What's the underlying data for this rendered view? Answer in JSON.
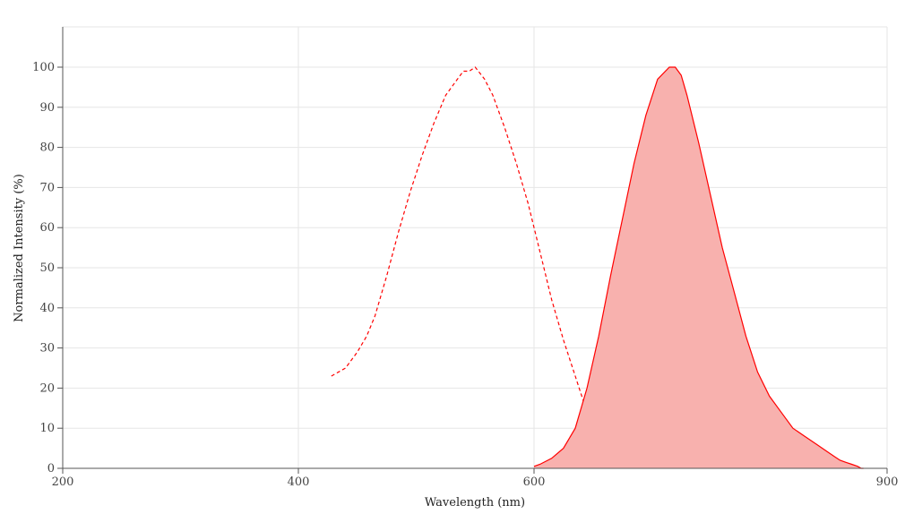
{
  "chart_data": {
    "type": "area",
    "xlabel": "Wavelength (nm)",
    "ylabel": "Normalized Intensity (%)",
    "xlim": [
      200,
      900
    ],
    "ylim": [
      0,
      110
    ],
    "x_ticks": [
      200,
      400,
      600,
      900
    ],
    "y_ticks": [
      0,
      10,
      20,
      30,
      40,
      50,
      60,
      70,
      80,
      90,
      100
    ],
    "grid": true,
    "series": [
      {
        "style": "dashed-line",
        "color": "#ff0000",
        "x": [
          428,
          440,
          450,
          458,
          465,
          475,
          485,
          495,
          505,
          515,
          525,
          535,
          540,
          545,
          550,
          558,
          565,
          575,
          585,
          595,
          605,
          615,
          625,
          635,
          645,
          655,
          665,
          675,
          685,
          695,
          700
        ],
        "y": [
          23,
          25,
          29,
          33,
          38,
          48,
          59,
          69,
          78,
          86,
          93,
          97,
          99,
          99,
          100,
          97,
          93,
          85,
          76,
          66,
          54,
          42,
          32,
          23,
          14,
          8,
          4,
          2,
          1,
          0.5,
          0
        ]
      },
      {
        "style": "filled-area",
        "color": "#ff0000",
        "fill": "#f8b1ae",
        "x": [
          600,
          605,
          615,
          625,
          635,
          645,
          655,
          665,
          675,
          685,
          695,
          705,
          715,
          720,
          725,
          730,
          740,
          750,
          760,
          770,
          780,
          790,
          800,
          810,
          820,
          830,
          840,
          850,
          855,
          860,
          865,
          870,
          875,
          878,
          880
        ],
        "y": [
          0.5,
          1,
          2.5,
          5,
          10,
          20,
          33,
          48,
          62,
          76,
          88,
          97,
          100,
          100,
          98,
          93,
          81,
          68,
          55,
          44,
          33,
          24,
          18,
          14,
          10,
          8,
          6,
          4,
          3,
          2,
          1.5,
          1,
          0.5,
          0,
          0
        ]
      }
    ]
  }
}
